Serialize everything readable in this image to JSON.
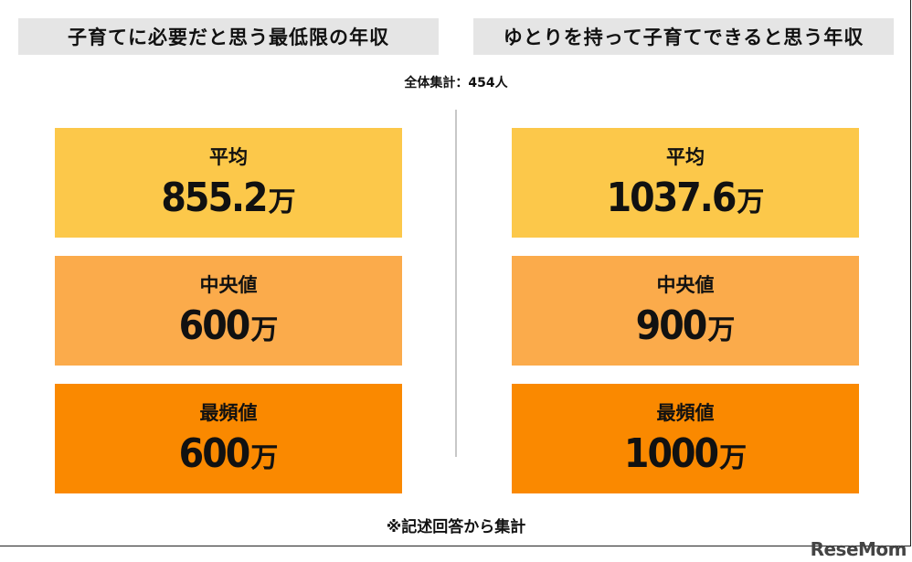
{
  "columns": [
    {
      "title": "子育てに必要だと思う最低限の年収",
      "cards": [
        {
          "label": "平均",
          "value": "855.2",
          "unit": "万"
        },
        {
          "label": "中央値",
          "value": "600",
          "unit": "万"
        },
        {
          "label": "最頻値",
          "value": "600",
          "unit": "万"
        }
      ]
    },
    {
      "title": "ゆとりを持って子育てできると思う年収",
      "cards": [
        {
          "label": "平均",
          "value": "1037.6",
          "unit": "万"
        },
        {
          "label": "中央値",
          "value": "900",
          "unit": "万"
        },
        {
          "label": "最頻値",
          "value": "1000",
          "unit": "万"
        }
      ]
    }
  ],
  "total": "全体集計：454人",
  "footnote": "※記述回答から集計",
  "logo": "ReseMom",
  "colors": {
    "title_bg": "#e5e5e5",
    "average": "#fcc84a",
    "median": "#fbab4b",
    "mode": "#fa8900"
  }
}
